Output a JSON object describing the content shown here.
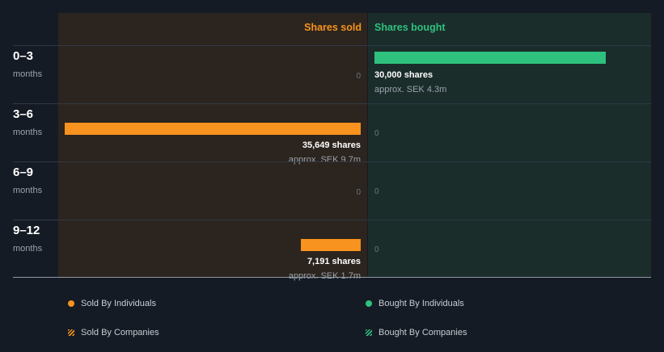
{
  "chart_data": {
    "type": "bar",
    "orientation": "horizontal-diverging",
    "columns": {
      "sold": "Shares sold",
      "bought": "Shares bought"
    },
    "categories": [
      {
        "period": "0–3",
        "unit": "months"
      },
      {
        "period": "3–6",
        "unit": "months"
      },
      {
        "period": "6–9",
        "unit": "months"
      },
      {
        "period": "9–12",
        "unit": "months"
      }
    ],
    "series": [
      {
        "name": "Shares sold",
        "values": [
          0,
          35649,
          0,
          7191
        ],
        "labels": [
          "0",
          "35,649 shares",
          "0",
          "7,191 shares"
        ],
        "approx": [
          "",
          "approx. SEK 9.7m",
          "",
          "approx. SEK 1.7m"
        ]
      },
      {
        "name": "Shares bought",
        "values": [
          30000,
          0,
          0,
          0
        ],
        "labels": [
          "30,000 shares",
          "0",
          "0",
          "0"
        ],
        "approx": [
          "approx. SEK 4.3m",
          "",
          "",
          ""
        ]
      }
    ],
    "max_value": 35649,
    "legend": [
      {
        "label": "Sold By Individuals",
        "marker": "dot",
        "color": "#f7931e"
      },
      {
        "label": "Bought By Individuals",
        "marker": "dot",
        "color": "#2ec27e"
      },
      {
        "label": "Sold By Companies",
        "marker": "hatch",
        "color": "#f7931e"
      },
      {
        "label": "Bought By Companies",
        "marker": "hatch",
        "color": "#2ec27e"
      }
    ]
  },
  "colors": {
    "sold": "#f7931e",
    "bought": "#2ec27e",
    "background": "#151b24"
  }
}
